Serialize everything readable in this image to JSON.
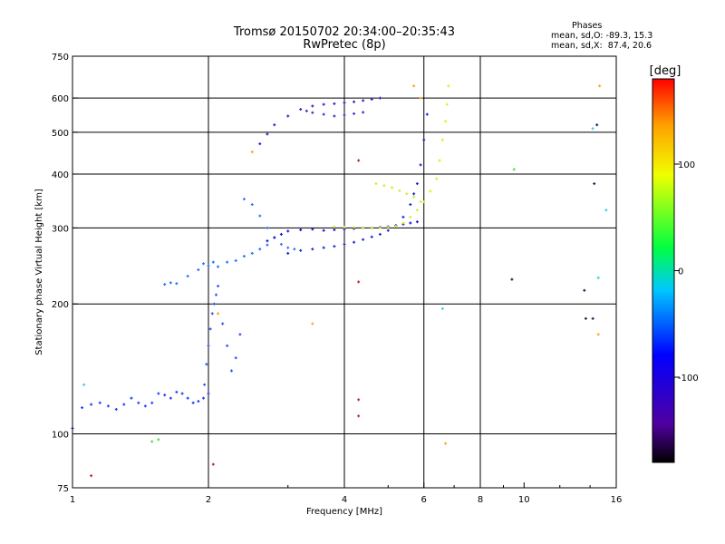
{
  "title": "Tromsø 20150702 20:34:00–20:35:43",
  "subtitle": "RwPretec (8p)",
  "stats": {
    "heading": "Phases",
    "line_o": "mean, sd,O: -89.3, 15.3",
    "line_x": "mean, sd,X:  87.4, 20.6"
  },
  "colorbar": {
    "label": "[deg]",
    "ticks": [
      "100",
      "0",
      "-100"
    ],
    "tick_values": [
      100,
      0,
      -100
    ],
    "range": [
      -180,
      180
    ]
  },
  "chart_data": {
    "type": "scatter",
    "xlabel": "Frequency [MHz]",
    "ylabel": "Stationary phase Virtual Height [km]",
    "x_scale": "log",
    "y_scale": "log",
    "xlim": [
      1,
      16
    ],
    "ylim": [
      75,
      750
    ],
    "x_ticks": [
      1,
      2,
      4,
      6,
      8,
      10,
      16
    ],
    "x_tick_labels": [
      "1",
      "2",
      "4",
      "6",
      "8",
      "10",
      "16"
    ],
    "x_gridlines": [
      2,
      4,
      6,
      8
    ],
    "y_ticks": [
      75,
      100,
      200,
      300,
      400,
      500,
      600,
      750
    ],
    "y_tick_labels": [
      "75",
      "100",
      "200",
      "300",
      "400",
      "500",
      "600",
      "750"
    ],
    "y_gridlines": [
      100,
      200,
      300,
      400,
      500,
      600
    ],
    "series": [
      {
        "color": "#1a3cff",
        "description_phase": -95,
        "x": [
          1.0,
          1.05,
          1.1,
          1.15,
          1.2,
          1.25,
          1.3,
          1.35,
          1.4,
          1.45,
          1.5,
          1.55,
          1.6,
          1.65,
          1.7,
          1.75,
          1.8,
          1.85,
          1.9,
          1.95,
          2.0
        ],
        "y": [
          103,
          115,
          117,
          118,
          116,
          114,
          117,
          121,
          118,
          116,
          118,
          124,
          123,
          121,
          125,
          124,
          121,
          118,
          119,
          121,
          124
        ]
      },
      {
        "color": "#2f4dff",
        "description_phase": -95,
        "x": [
          1.96,
          1.98,
          2.0,
          2.02,
          2.04,
          2.06,
          2.08,
          2.1,
          2.15,
          2.2,
          2.25,
          2.3,
          2.35
        ],
        "y": [
          130,
          145,
          160,
          175,
          190,
          200,
          210,
          220,
          180,
          160,
          140,
          150,
          170
        ]
      },
      {
        "color": "#1f6fff",
        "description_phase": -85,
        "x": [
          1.6,
          1.65,
          1.7,
          1.8,
          1.9,
          1.95,
          2.0,
          2.05,
          2.1,
          2.2,
          2.3,
          2.4,
          2.5,
          2.6,
          2.7
        ],
        "y": [
          222,
          224,
          223,
          232,
          240,
          248,
          245,
          250,
          244,
          250,
          252,
          258,
          262,
          268,
          274
        ]
      },
      {
        "color": "#3a6bff",
        "description_phase": -80,
        "x": [
          2.4,
          2.5,
          2.6,
          2.7,
          2.8,
          2.9,
          3.0,
          3.1
        ],
        "y": [
          350,
          340,
          320,
          300,
          285,
          275,
          270,
          268
        ]
      },
      {
        "color": "#1414d0",
        "description_phase": -110,
        "x": [
          2.7,
          2.8,
          2.9,
          3.0,
          3.2,
          3.4,
          3.6,
          3.8,
          4.0,
          4.2,
          4.4,
          4.6,
          4.8,
          5.0,
          5.2,
          5.4,
          5.6,
          5.8
        ],
        "y": [
          280,
          285,
          290,
          295,
          297,
          298,
          296,
          297,
          298,
          299,
          300,
          300,
          301,
          302,
          304,
          306,
          308,
          310
        ]
      },
      {
        "color": "#1428c8",
        "description_phase": -105,
        "x": [
          3.0,
          3.2,
          3.4,
          3.6,
          3.8,
          4.0,
          4.2,
          4.4,
          4.6,
          4.8,
          5.0,
          5.2,
          5.4,
          5.6,
          5.7,
          5.8,
          5.9,
          6.0,
          6.1
        ],
        "y": [
          262,
          266,
          268,
          270,
          272,
          275,
          278,
          282,
          286,
          290,
          296,
          304,
          318,
          340,
          360,
          380,
          420,
          480,
          550
        ]
      },
      {
        "color": "#2820c8",
        "description_phase": -110,
        "x": [
          2.6,
          2.7,
          2.8,
          3.0,
          3.2,
          3.4,
          3.6,
          3.8,
          4.0,
          4.2,
          4.4,
          4.6,
          4.8
        ],
        "y": [
          470,
          495,
          520,
          545,
          565,
          575,
          580,
          582,
          585,
          588,
          592,
          596,
          600
        ]
      },
      {
        "color": "#3030c8",
        "description_phase": -108,
        "x": [
          3.3,
          3.4,
          3.6,
          3.8,
          4.0,
          4.2,
          4.4
        ],
        "y": [
          560,
          555,
          550,
          545,
          548,
          552,
          556
        ]
      },
      {
        "color": "#d8f01e",
        "description_phase": 95,
        "x": [
          3.8,
          4.0,
          4.2,
          4.4,
          4.6,
          4.8,
          5.0,
          5.2,
          5.4,
          5.6,
          5.8,
          6.0,
          6.2,
          6.4,
          6.5,
          6.6,
          6.7,
          6.75,
          6.8
        ],
        "y": [
          302,
          301,
          301,
          300,
          300,
          300,
          301,
          303,
          308,
          318,
          330,
          345,
          365,
          390,
          430,
          480,
          530,
          580,
          640
        ]
      },
      {
        "color": "#c8f028",
        "description_phase": 90,
        "x": [
          4.7,
          4.9,
          5.1,
          5.3,
          5.5,
          5.7,
          5.9
        ],
        "y": [
          380,
          376,
          372,
          366,
          360,
          354,
          345
        ]
      },
      {
        "color": "#c02020",
        "description_phase": 170,
        "x": [
          1.1,
          2.05,
          4.3,
          4.3,
          4.3,
          4.3
        ],
        "y": [
          80,
          85,
          430,
          110,
          120,
          225
        ]
      },
      {
        "color": "#ffa020",
        "description_phase": 130,
        "x": [
          3.4,
          2.1,
          2.5,
          5.7,
          5.9,
          6.7,
          14.6,
          14.7
        ],
        "y": [
          180,
          190,
          450,
          640,
          600,
          95,
          170,
          640
        ]
      },
      {
        "color": "#202050",
        "description_phase": -160,
        "x": [
          9.4,
          13.6,
          13.7,
          14.2,
          14.5,
          14.3
        ],
        "y": [
          228,
          215,
          185,
          185,
          520,
          380
        ]
      },
      {
        "color": "#30d0e0",
        "description_phase": -30,
        "x": [
          14.6,
          15.2,
          6.6,
          14.2,
          1.06
        ],
        "y": [
          230,
          330,
          195,
          510,
          130
        ]
      },
      {
        "color": "#40e040",
        "description_phase": 10,
        "x": [
          1.5,
          9.5,
          1.55
        ],
        "y": [
          96,
          410,
          97
        ]
      }
    ]
  }
}
